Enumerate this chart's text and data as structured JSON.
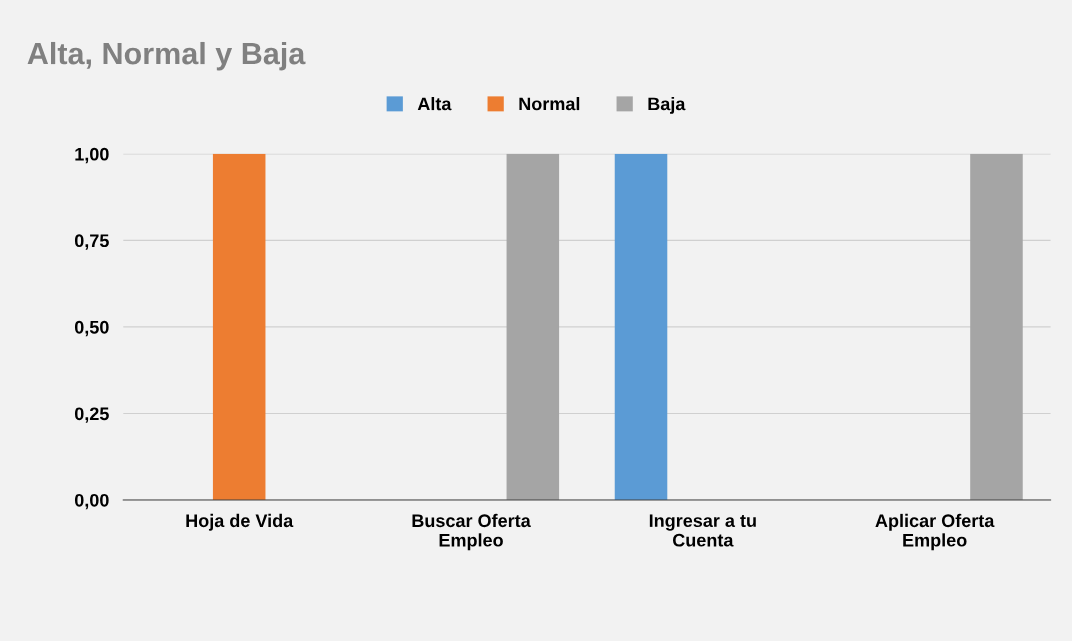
{
  "chart_data": {
    "type": "bar",
    "title": "Alta, Normal y Baja",
    "categories": [
      "Hoja de Vida",
      "Buscar Oferta\nEmpleo",
      "Ingresar a tu\nCuenta",
      "Aplicar Oferta\nEmpleo"
    ],
    "series": [
      {
        "name": "Alta",
        "color": "#5b9bd5",
        "values": [
          0,
          0,
          1,
          0
        ]
      },
      {
        "name": "Normal",
        "color": "#ed7d31",
        "values": [
          1,
          0,
          0,
          0
        ]
      },
      {
        "name": "Baja",
        "color": "#a5a5a5",
        "values": [
          0,
          1,
          0,
          1
        ]
      }
    ],
    "ylim": [
      0,
      1
    ],
    "yticks": [
      {
        "value": 0,
        "label": "0,00"
      },
      {
        "value": 0.25,
        "label": "0,25"
      },
      {
        "value": 0.5,
        "label": "0,50"
      },
      {
        "value": 0.75,
        "label": "0,75"
      },
      {
        "value": 1,
        "label": "1,00"
      }
    ],
    "grid": "y",
    "legend": "top"
  }
}
